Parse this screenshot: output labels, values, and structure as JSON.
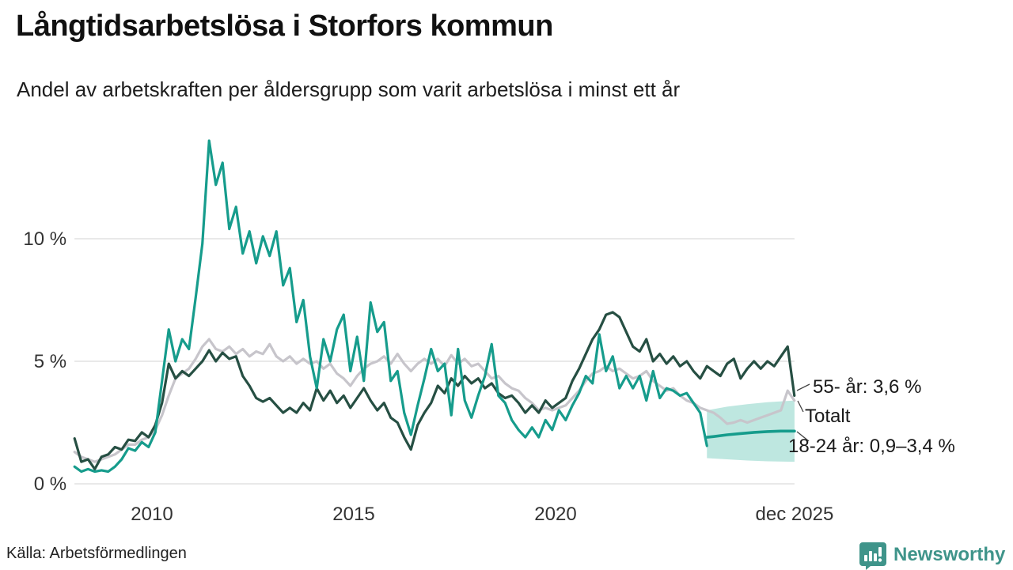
{
  "header": {
    "title": "Långtidsarbetslösa i Storfors kommun",
    "subtitle": "Andel av arbetskraften per åldersgrupp som varit arbetslösa i minst ett år"
  },
  "footer": {
    "source": "Källa: Arbetsförmedlingen",
    "brand": "Newsworthy"
  },
  "colors": {
    "young": "#169c8c",
    "old": "#26four"
  },
  "chart_data": {
    "type": "line",
    "title": "Långtidsarbetslösa i Storfors kommun",
    "subtitle": "Andel av arbetskraften per åldersgrupp som varit arbetslösa i minst ett år",
    "grid": true,
    "legend_position": "end-of-line labels (right)",
    "x_axis": {
      "range": [
        2007.9,
        2026.3
      ],
      "ticks": [
        2010,
        2015,
        2020,
        2025.92
      ],
      "tick_labels": [
        "2010",
        "2015",
        "2020",
        "dec 2025"
      ]
    },
    "y_axis": {
      "unit": "%",
      "range": [
        0,
        14.5
      ],
      "ticks": [
        0,
        5,
        10
      ],
      "tick_labels": [
        "0 %",
        "5 %",
        "10 %"
      ]
    },
    "annotations": [
      {
        "series": "55- år",
        "text": "55- år: 3,6 %",
        "end_value": 3.6
      },
      {
        "series": "Totalt",
        "text": "Totalt",
        "end_value": 3.4
      },
      {
        "series": "18-24 år",
        "text": "18-24 år: 0,9–3,4 %",
        "end_range": [
          0.9,
          3.4
        ]
      }
    ],
    "series": [
      {
        "name": "Totalt",
        "color": "#c7c5cb",
        "role": "line",
        "x_start": 2008.083,
        "x_step": 0.16667,
        "values": [
          1.3,
          1.1,
          1.0,
          0.9,
          1.0,
          1.1,
          1.2,
          1.4,
          1.6,
          1.6,
          1.8,
          1.9,
          2.2,
          2.8,
          3.6,
          4.3,
          4.5,
          4.7,
          5.1,
          5.6,
          5.9,
          5.5,
          5.4,
          5.6,
          5.3,
          5.5,
          5.2,
          5.4,
          5.3,
          5.7,
          5.2,
          5.0,
          5.2,
          4.9,
          5.1,
          4.9,
          5.0,
          4.7,
          4.9,
          4.5,
          4.3,
          4.0,
          4.4,
          4.7,
          4.9,
          5.0,
          5.2,
          4.9,
          5.3,
          4.9,
          4.6,
          4.9,
          5.1,
          4.9,
          5.1,
          4.8,
          5.25,
          4.9,
          5.1,
          4.8,
          4.9,
          4.6,
          4.3,
          4.4,
          4.1,
          3.9,
          3.8,
          3.5,
          3.3,
          3.0,
          3.1,
          3.0,
          3.1,
          3.2,
          3.5,
          3.8,
          4.2,
          4.5,
          4.6,
          4.8,
          4.6,
          4.7,
          4.5,
          4.3,
          4.4,
          4.6,
          4.2,
          4.0,
          3.8,
          3.9,
          3.6,
          3.4,
          3.3,
          3.1,
          3.0,
          2.9,
          2.7,
          2.45,
          2.5,
          2.6,
          2.5,
          2.6,
          2.7,
          2.8,
          2.9,
          3.0,
          3.8,
          3.4
        ]
      },
      {
        "name": "55- år",
        "color": "#264f43",
        "role": "line",
        "x_start": 2008.083,
        "x_step": 0.16667,
        "values": [
          1.85,
          0.9,
          1.0,
          0.6,
          1.1,
          1.2,
          1.5,
          1.4,
          1.8,
          1.75,
          2.1,
          1.9,
          2.4,
          3.3,
          4.9,
          4.3,
          4.6,
          4.4,
          4.7,
          5.0,
          5.45,
          5.0,
          5.35,
          5.1,
          5.2,
          4.4,
          4.0,
          3.5,
          3.35,
          3.5,
          3.2,
          2.9,
          3.1,
          2.9,
          3.3,
          3.0,
          3.9,
          3.4,
          3.8,
          3.3,
          3.6,
          3.1,
          3.5,
          3.9,
          3.4,
          3.0,
          3.3,
          2.7,
          2.5,
          1.9,
          1.4,
          2.4,
          2.9,
          3.3,
          4.0,
          3.7,
          4.3,
          4.0,
          4.4,
          4.1,
          4.3,
          3.9,
          4.1,
          3.7,
          3.5,
          3.6,
          3.3,
          2.9,
          3.2,
          2.9,
          3.4,
          3.1,
          3.3,
          3.5,
          4.2,
          4.7,
          5.3,
          5.9,
          6.3,
          6.9,
          7.0,
          6.8,
          6.2,
          5.6,
          5.4,
          5.9,
          5.0,
          5.3,
          4.9,
          5.2,
          4.8,
          5.0,
          4.6,
          4.3,
          4.8,
          4.6,
          4.4,
          4.9,
          5.1,
          4.3,
          4.7,
          5.0,
          4.7,
          5.0,
          4.8,
          5.2,
          5.6,
          3.6
        ]
      },
      {
        "name": "18-24 år",
        "color": "#169c8c",
        "role": "line",
        "x_start": 2008.083,
        "x_step": 0.16667,
        "values": [
          0.7,
          0.5,
          0.6,
          0.5,
          0.55,
          0.5,
          0.7,
          1.0,
          1.45,
          1.35,
          1.7,
          1.5,
          2.1,
          4.2,
          6.3,
          5.0,
          5.9,
          5.5,
          7.6,
          9.8,
          14.0,
          12.2,
          13.1,
          10.4,
          11.3,
          9.4,
          10.3,
          9.0,
          10.1,
          9.3,
          10.3,
          8.1,
          8.8,
          6.6,
          7.5,
          5.2,
          3.9,
          5.9,
          5.0,
          6.3,
          6.9,
          4.6,
          6.0,
          4.2,
          7.4,
          6.2,
          6.6,
          4.2,
          4.6,
          2.9,
          2.0,
          3.2,
          4.3,
          5.5,
          4.6,
          4.9,
          2.8,
          5.5,
          3.4,
          2.7,
          3.6,
          4.4,
          5.7,
          3.6,
          3.3,
          2.6,
          2.2,
          1.9,
          2.3,
          1.9,
          2.6,
          2.2,
          3.0,
          2.6,
          3.2,
          3.7,
          4.4,
          4.1,
          6.1,
          4.6,
          5.2,
          3.9,
          4.4,
          3.9,
          4.4,
          3.4,
          4.6,
          3.5,
          3.9,
          3.8,
          3.6,
          3.7,
          3.3,
          2.9,
          1.55
        ]
      },
      {
        "name": "18-24 år prognos",
        "color": "#169c8c",
        "role": "forecast-line",
        "x": [
          2023.75,
          2023.92,
          2024.25,
          2024.58,
          2024.92,
          2025.25,
          2025.58,
          2025.92
        ],
        "values": [
          1.9,
          1.93,
          2.0,
          2.05,
          2.1,
          2.13,
          2.15,
          2.15
        ]
      },
      {
        "name": "18-24 år intervall",
        "color": "#7ecfc2",
        "role": "band",
        "x": [
          2023.75,
          2024.25,
          2024.75,
          2025.25,
          2025.92
        ],
        "low": [
          1.05,
          1.0,
          0.95,
          0.92,
          0.9
        ],
        "high": [
          3.0,
          3.15,
          3.25,
          3.33,
          3.4
        ]
      }
    ]
  }
}
